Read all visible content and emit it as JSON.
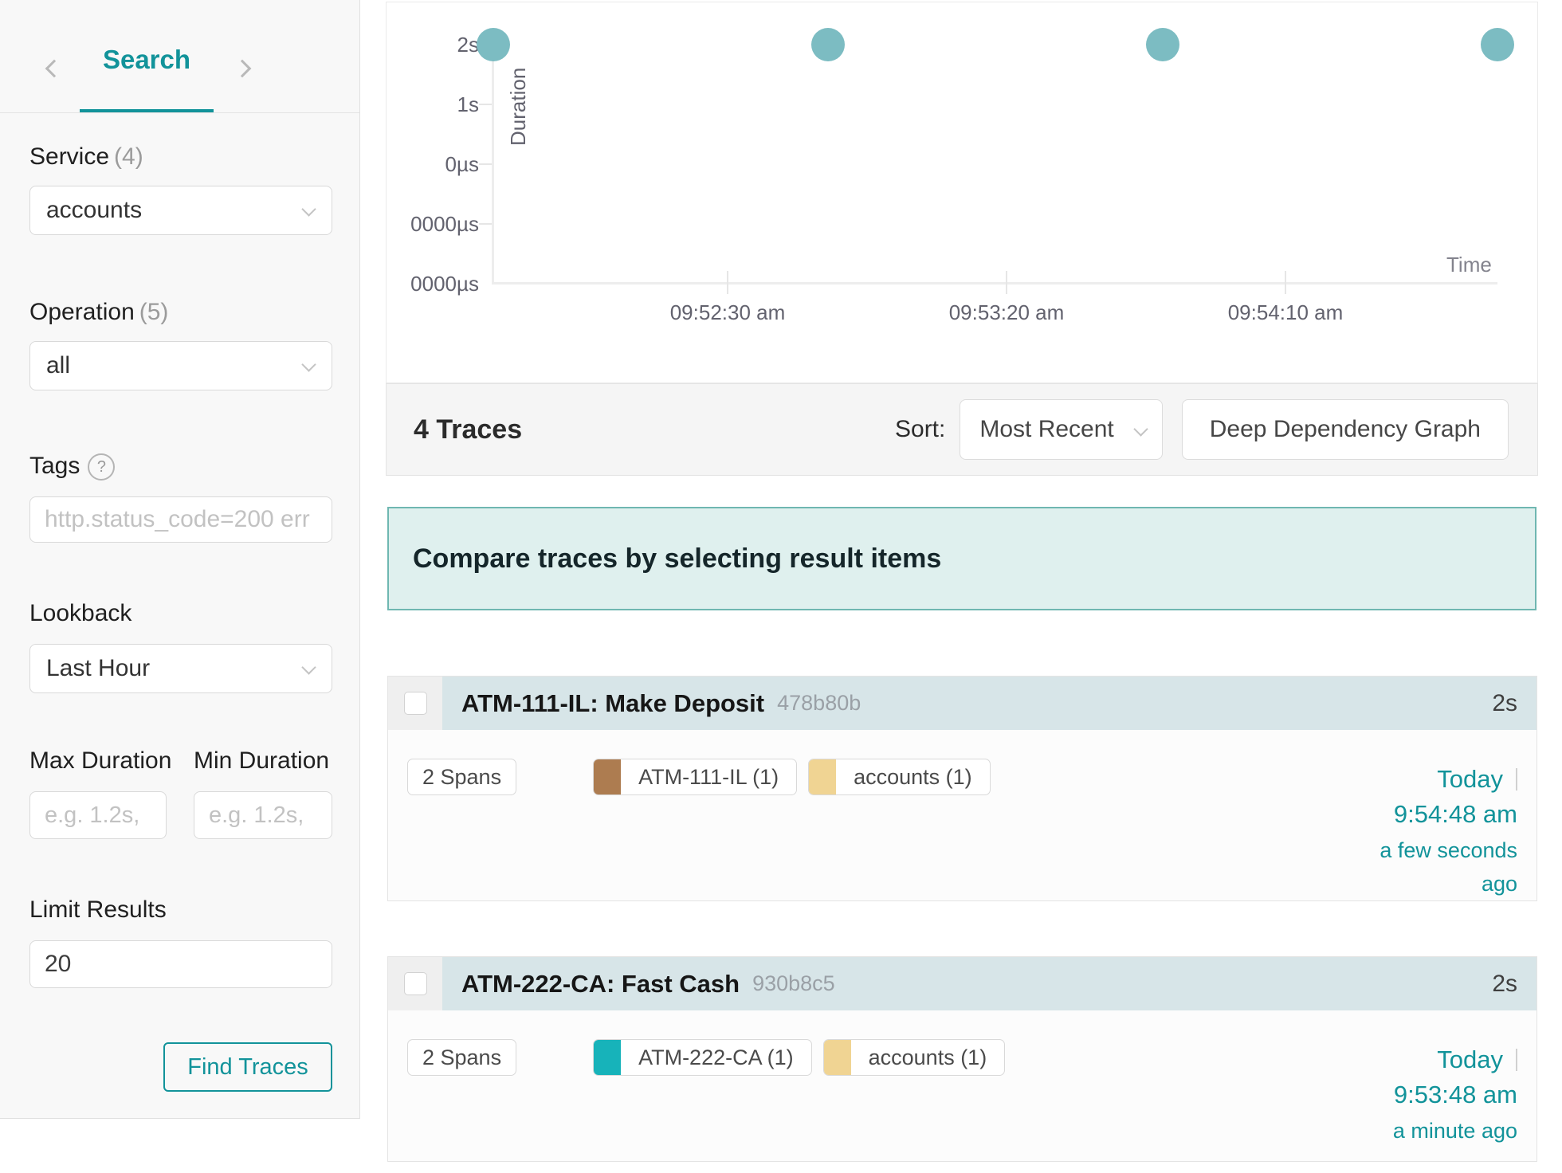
{
  "app": {
    "accent_color": "#12939a"
  },
  "sidebar": {
    "nav": {
      "tab_label": "Search"
    },
    "service": {
      "label": "Service",
      "count": "(4)",
      "value": "accounts"
    },
    "operation": {
      "label": "Operation",
      "count": "(5)",
      "value": "all"
    },
    "tags": {
      "label": "Tags",
      "help_icon": "?",
      "placeholder": "http.status_code=200 err"
    },
    "lookback": {
      "label": "Lookback",
      "value": "Last Hour"
    },
    "max_duration": {
      "label": "Max Duration",
      "placeholder": "e.g. 1.2s,"
    },
    "min_duration": {
      "label": "Min Duration",
      "placeholder": "e.g. 1.2s,"
    },
    "limit": {
      "label": "Limit Results",
      "value": "20"
    },
    "find_button_label": "Find Traces"
  },
  "results_header": {
    "count_label": "4 Traces",
    "sort_label": "Sort:",
    "sort_value": "Most Recent",
    "ddg_button_label": "Deep Dependency Graph"
  },
  "compare_banner": {
    "message": "Compare traces by selecting result items"
  },
  "traces": [
    {
      "title": "ATM-111-IL: Make Deposit",
      "trace_id": "478b80b",
      "duration": "2s",
      "span_count_label": "2 Spans",
      "service_tags": [
        {
          "label": "ATM-111-IL (1)",
          "color": "#ad7c50"
        },
        {
          "label": "accounts (1)",
          "color": "#f0d493"
        }
      ],
      "date": "Today",
      "time": "9:54:48 am",
      "relative_time": "a few seconds ago"
    },
    {
      "title": "ATM-222-CA: Fast Cash",
      "trace_id": "930b8c5",
      "duration": "2s",
      "span_count_label": "2 Spans",
      "service_tags": [
        {
          "label": "ATM-222-CA (1)",
          "color": "#17b3ba"
        },
        {
          "label": "accounts (1)",
          "color": "#f0d493"
        }
      ],
      "date": "Today",
      "time": "9:53:48 am",
      "relative_time": "a minute ago"
    }
  ],
  "chart_data": {
    "type": "scatter",
    "xlabel": "Time",
    "ylabel": "Duration",
    "x_tick_labels": [
      "09:52:30 am",
      "09:53:20 am",
      "09:54:10 am"
    ],
    "y_tick_labels": [
      "2s",
      "1s",
      "0µs",
      "0000µs",
      "0000µs"
    ],
    "points": [
      {
        "time": "09:51:48 am",
        "duration": "2s",
        "duration_s": 2
      },
      {
        "time": "09:52:48 am",
        "duration": "2s",
        "duration_s": 2
      },
      {
        "time": "09:53:48 am",
        "duration": "2s",
        "duration_s": 2
      },
      {
        "time": "09:54:48 am",
        "duration": "2s",
        "duration_s": 2
      }
    ],
    "point_color": "#7cbcc2",
    "legend": "none",
    "ylim_top_label": "2s"
  }
}
